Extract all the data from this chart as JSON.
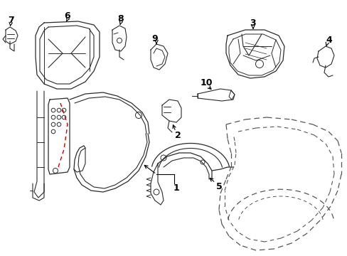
{
  "background_color": "#ffffff",
  "line_color": "#2a2a2a",
  "red_dashed_color": "#cc0000",
  "dash_color": "#555555"
}
